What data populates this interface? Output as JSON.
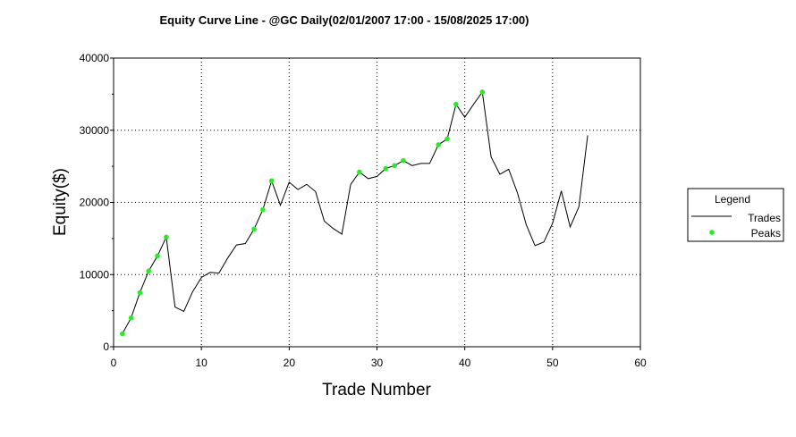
{
  "chart_data": {
    "type": "line",
    "title": "Equity Curve Line - @GC Daily(02/01/2007 17:00 - 15/08/2025 17:00)",
    "xlabel": "Trade Number",
    "ylabel": "Equity($)",
    "xlim": [
      0,
      60
    ],
    "ylim": [
      0,
      40000
    ],
    "xticks": [
      0,
      10,
      20,
      30,
      40,
      50,
      60
    ],
    "yticks": [
      0,
      10000,
      20000,
      30000,
      40000
    ],
    "grid": true,
    "legend": {
      "title": "Legend",
      "position": "right",
      "entries": [
        "Trades",
        "Peaks"
      ]
    },
    "series": [
      {
        "name": "Trades",
        "style": "line",
        "color": "#000000",
        "x": [
          1,
          2,
          3,
          4,
          5,
          6,
          7,
          8,
          9,
          10,
          11,
          12,
          13,
          14,
          15,
          16,
          17,
          18,
          19,
          20,
          21,
          22,
          23,
          24,
          25,
          26,
          27,
          28,
          29,
          30,
          31,
          32,
          33,
          34,
          35,
          36,
          37,
          38,
          39,
          40,
          41,
          42,
          43,
          44,
          45,
          46,
          47,
          48,
          49,
          50,
          51,
          52,
          53,
          54
        ],
        "y": [
          1800,
          4000,
          7500,
          10500,
          12600,
          15200,
          5500,
          4900,
          7600,
          9600,
          10300,
          10200,
          12300,
          14100,
          14300,
          16300,
          19000,
          23000,
          19600,
          22800,
          21800,
          22500,
          21500,
          17400,
          16400,
          15600,
          22500,
          24200,
          23300,
          23600,
          24700,
          25100,
          25800,
          25100,
          25400,
          25400,
          28000,
          28800,
          33600,
          31800,
          33600,
          35300,
          26300,
          23900,
          24600,
          21300,
          16900,
          14000,
          14500,
          17100,
          21600,
          16600,
          19400,
          29300
        ]
      },
      {
        "name": "Peaks",
        "style": "scatter",
        "color": "#22ee22",
        "x": [
          1,
          2,
          3,
          4,
          5,
          6,
          16,
          17,
          18,
          28,
          31,
          32,
          33,
          37,
          38,
          39,
          42
        ],
        "y": [
          1800,
          4000,
          7500,
          10500,
          12600,
          15200,
          16300,
          19000,
          23000,
          24200,
          24700,
          25100,
          25800,
          28000,
          28800,
          33600,
          35300
        ]
      }
    ]
  }
}
